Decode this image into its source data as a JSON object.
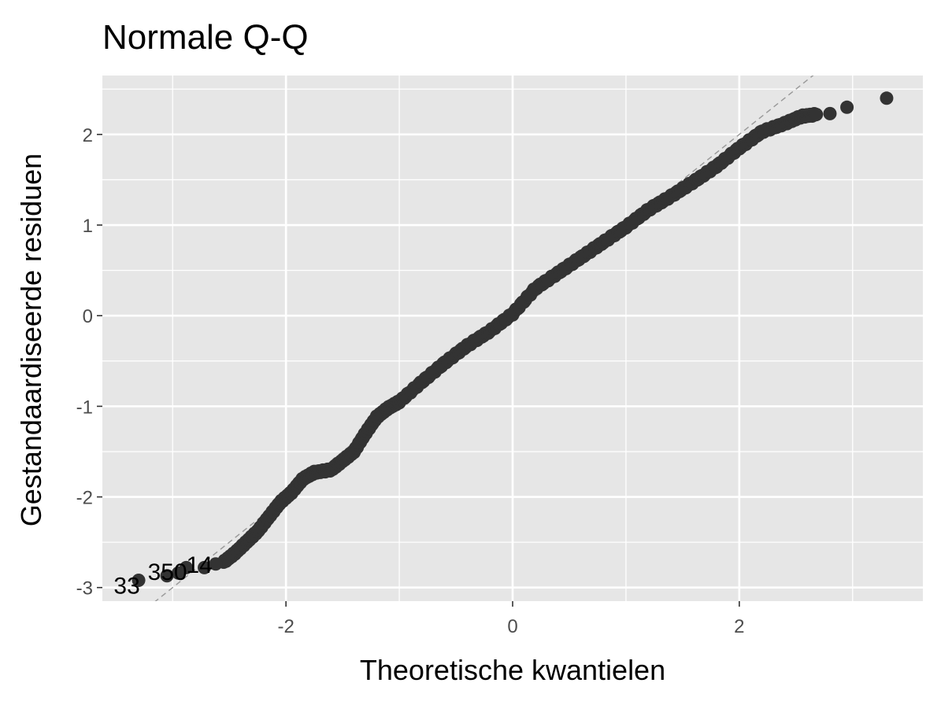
{
  "chart_data": {
    "type": "scatter",
    "title": "Normale Q-Q",
    "xlabel": "Theoretische kwantielen",
    "ylabel": "Gestandaardiseerde residuen",
    "xlim": [
      -3.62,
      3.62
    ],
    "ylim": [
      -3.15,
      2.65
    ],
    "x_ticks": [
      -2,
      0,
      2
    ],
    "y_ticks": [
      -3,
      -2,
      -1,
      0,
      1,
      2
    ],
    "x_tick_labels": [
      "-2",
      "0",
      "2"
    ],
    "y_tick_labels": [
      "-3",
      "-2",
      "-1",
      "0",
      "1",
      "2"
    ],
    "grid": true,
    "legend": "none",
    "reference_line": {
      "slope": 1.0,
      "intercept": 0.0,
      "style": "dashed",
      "color": "#999999"
    },
    "point_color": "#333333",
    "panel_color": "#e6e6e6",
    "grid_color": "#ffffff",
    "outlier_points": [
      {
        "x": 3.3,
        "y": 2.4
      },
      {
        "x": 2.95,
        "y": 2.3
      },
      {
        "x": 2.8,
        "y": 2.23
      },
      {
        "x": -3.3,
        "y": -2.92
      },
      {
        "x": -3.05,
        "y": -2.87
      },
      {
        "x": -2.95,
        "y": -2.84
      },
      {
        "x": -2.88,
        "y": -2.78
      },
      {
        "x": -2.72,
        "y": -2.78
      },
      {
        "x": -2.62,
        "y": -2.74
      }
    ],
    "curve_points": [
      {
        "x": -2.55,
        "y": -2.72
      },
      {
        "x": -2.45,
        "y": -2.62
      },
      {
        "x": -2.35,
        "y": -2.5
      },
      {
        "x": -2.25,
        "y": -2.38
      },
      {
        "x": -2.15,
        "y": -2.22
      },
      {
        "x": -2.05,
        "y": -2.06
      },
      {
        "x": -1.95,
        "y": -1.95
      },
      {
        "x": -1.85,
        "y": -1.8
      },
      {
        "x": -1.75,
        "y": -1.73
      },
      {
        "x": -1.6,
        "y": -1.7
      },
      {
        "x": -1.5,
        "y": -1.6
      },
      {
        "x": -1.4,
        "y": -1.5
      },
      {
        "x": -1.3,
        "y": -1.3
      },
      {
        "x": -1.2,
        "y": -1.12
      },
      {
        "x": -1.1,
        "y": -1.02
      },
      {
        "x": -1.0,
        "y": -0.95
      },
      {
        "x": -0.8,
        "y": -0.73
      },
      {
        "x": -0.6,
        "y": -0.52
      },
      {
        "x": -0.4,
        "y": -0.33
      },
      {
        "x": -0.2,
        "y": -0.17
      },
      {
        "x": 0.0,
        "y": 0.02
      },
      {
        "x": 0.2,
        "y": 0.3
      },
      {
        "x": 0.4,
        "y": 0.47
      },
      {
        "x": 0.6,
        "y": 0.64
      },
      {
        "x": 0.8,
        "y": 0.81
      },
      {
        "x": 1.0,
        "y": 0.98
      },
      {
        "x": 1.2,
        "y": 1.17
      },
      {
        "x": 1.4,
        "y": 1.32
      },
      {
        "x": 1.6,
        "y": 1.48
      },
      {
        "x": 1.8,
        "y": 1.65
      },
      {
        "x": 2.0,
        "y": 1.85
      },
      {
        "x": 2.2,
        "y": 2.03
      },
      {
        "x": 2.4,
        "y": 2.12
      },
      {
        "x": 2.55,
        "y": 2.2
      },
      {
        "x": 2.68,
        "y": 2.22
      }
    ],
    "annotations": [
      {
        "text": "33",
        "x": -3.52,
        "y": -2.97
      },
      {
        "text": "350",
        "x": -3.22,
        "y": -2.82
      },
      {
        "text": "14",
        "x": -2.88,
        "y": -2.74
      }
    ]
  }
}
